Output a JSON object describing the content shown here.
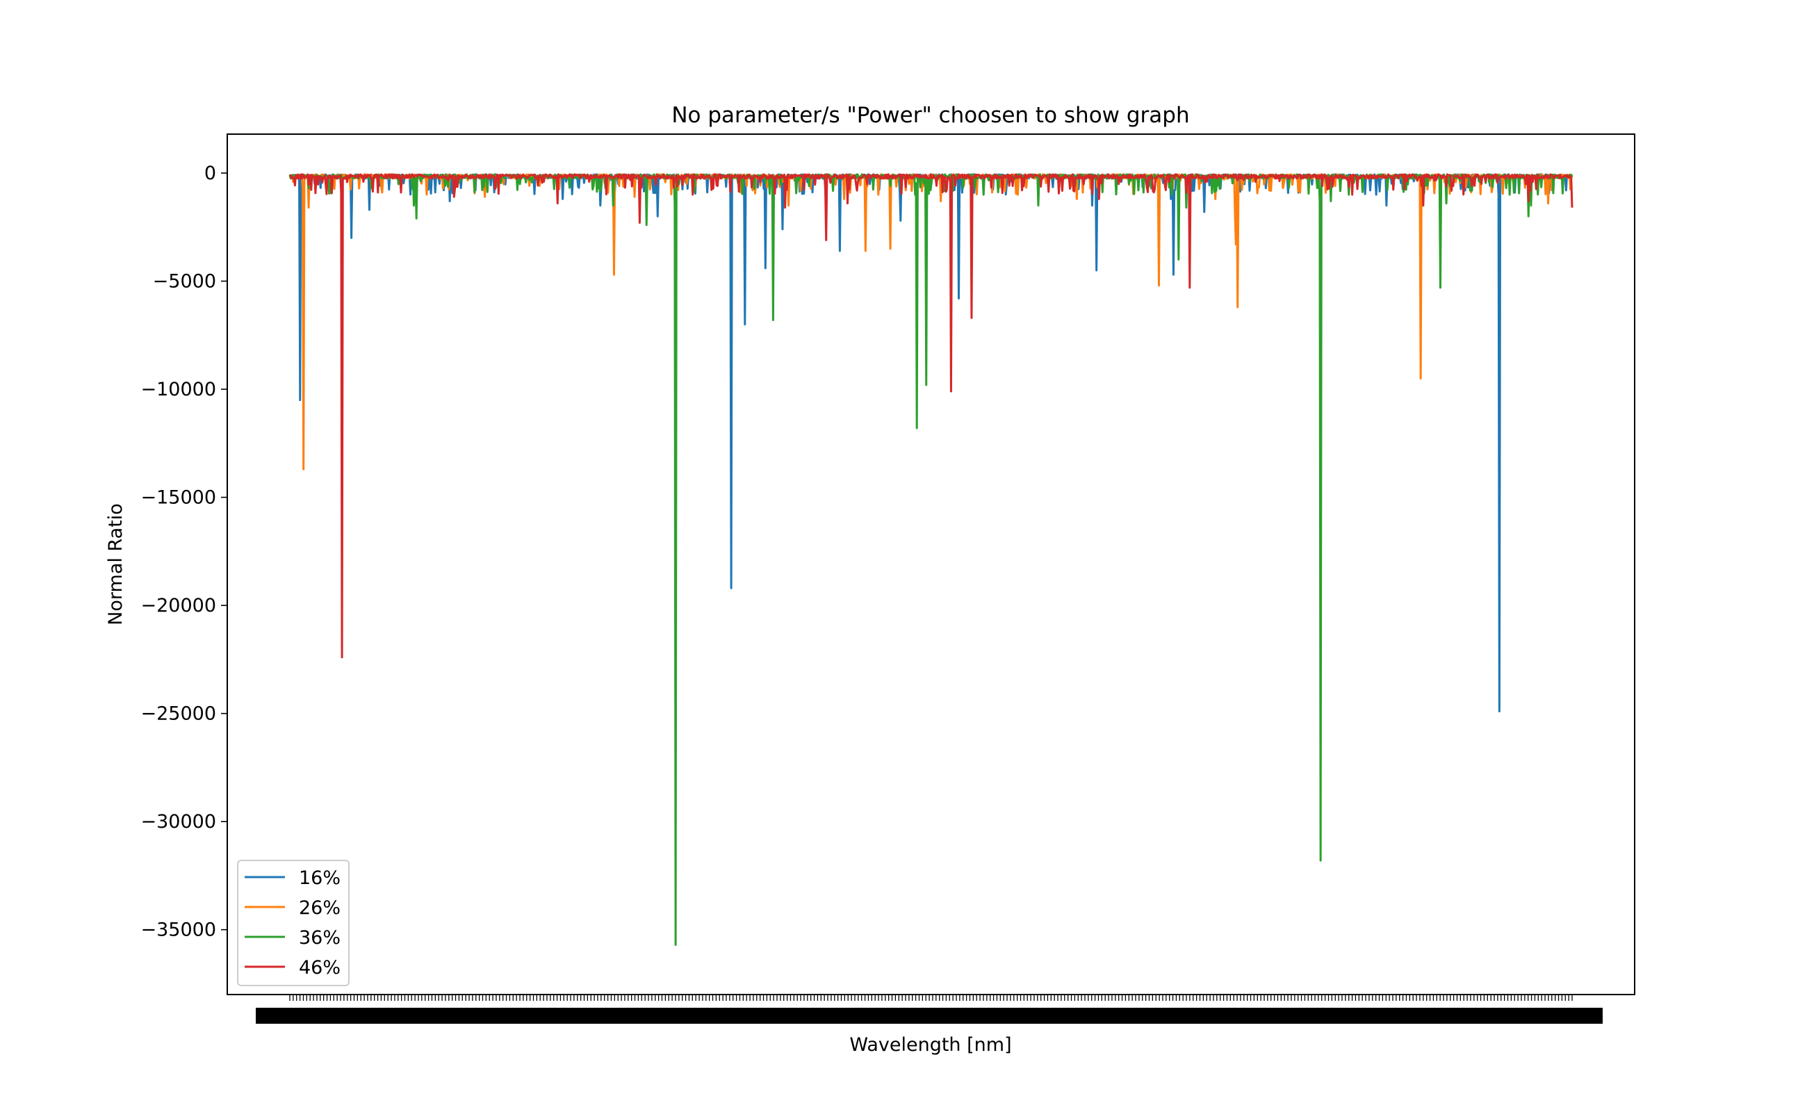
{
  "chart_data": {
    "type": "line",
    "title": "No parameter/s \"Power\" choosen to show graph",
    "xlabel": "Wavelength [nm]",
    "ylabel": "Normal Ratio",
    "ylim": [
      -38000,
      1800
    ],
    "yticks": [
      0,
      -5000,
      -10000,
      -15000,
      -20000,
      -25000,
      -30000,
      -35000
    ],
    "ytick_labels": [
      "0",
      "−5000",
      "−10000",
      "−15000",
      "−20000",
      "−25000",
      "−30000",
      "−35000"
    ],
    "x_tick_count": 380,
    "x_tick_labels_note": "dense overlapping wavelength tick labels (unreadable)",
    "grid": false,
    "legend_position": "lower left",
    "series": [
      {
        "name": "16%",
        "color": "#1f77b4",
        "spikes": [
          [
            0.008,
            -10500
          ],
          [
            0.048,
            -3000
          ],
          [
            0.062,
            -1700
          ],
          [
            0.125,
            -1300
          ],
          [
            0.145,
            -800
          ],
          [
            0.213,
            -1200
          ],
          [
            0.242,
            -1500
          ],
          [
            0.287,
            -2000
          ],
          [
            0.344,
            -19200
          ],
          [
            0.355,
            -7000
          ],
          [
            0.371,
            -4400
          ],
          [
            0.384,
            -2600
          ],
          [
            0.429,
            -3600
          ],
          [
            0.476,
            -2200
          ],
          [
            0.522,
            -5800
          ],
          [
            0.626,
            -1500
          ],
          [
            0.629,
            -4500
          ],
          [
            0.687,
            -1200
          ],
          [
            0.689,
            -4700
          ],
          [
            0.713,
            -1800
          ],
          [
            0.761,
            -700
          ],
          [
            0.847,
            -1000
          ],
          [
            0.855,
            -1500
          ],
          [
            0.943,
            -24900
          ],
          [
            0.955,
            -900
          ],
          [
            0.972,
            -600
          ],
          [
            0.995,
            -800
          ]
        ]
      },
      {
        "name": "26%",
        "color": "#ff7f0e",
        "spikes": [
          [
            0.011,
            -13700
          ],
          [
            0.015,
            -1600
          ],
          [
            0.072,
            -900
          ],
          [
            0.152,
            -1100
          ],
          [
            0.253,
            -4700
          ],
          [
            0.269,
            -1100
          ],
          [
            0.361,
            -800
          ],
          [
            0.389,
            -1500
          ],
          [
            0.432,
            -1200
          ],
          [
            0.449,
            -3600
          ],
          [
            0.468,
            -3500
          ],
          [
            0.508,
            -1300
          ],
          [
            0.548,
            -900
          ],
          [
            0.614,
            -1200
          ],
          [
            0.678,
            -5200
          ],
          [
            0.722,
            -1200
          ],
          [
            0.737,
            -2000
          ],
          [
            0.738,
            -3300
          ],
          [
            0.737,
            -2000
          ],
          [
            0.739,
            -6200
          ],
          [
            0.764,
            -800
          ],
          [
            0.788,
            -900
          ],
          [
            0.882,
            -9500
          ],
          [
            0.981,
            -1400
          ]
        ]
      },
      {
        "name": "36%",
        "color": "#2ca02c",
        "spikes": [
          [
            0.097,
            -1500
          ],
          [
            0.099,
            -2100
          ],
          [
            0.163,
            -500
          ],
          [
            0.252,
            -1500
          ],
          [
            0.278,
            -2400
          ],
          [
            0.301,
            -35700
          ],
          [
            0.377,
            -6800
          ],
          [
            0.468,
            -600
          ],
          [
            0.489,
            -11800
          ],
          [
            0.496,
            -9800
          ],
          [
            0.541,
            -1000
          ],
          [
            0.584,
            -1500
          ],
          [
            0.693,
            -4000
          ],
          [
            0.699,
            -1600
          ],
          [
            0.804,
            -31800
          ],
          [
            0.812,
            -1300
          ],
          [
            0.826,
            -1000
          ],
          [
            0.897,
            -5300
          ],
          [
            0.902,
            -1400
          ],
          [
            0.951,
            -1000
          ],
          [
            0.966,
            -2000
          ],
          [
            0.968,
            -1500
          ]
        ]
      },
      {
        "name": "46%",
        "color": "#d62728",
        "spikes": [
          [
            0.041,
            -22400
          ],
          [
            0.087,
            -900
          ],
          [
            0.128,
            -1100
          ],
          [
            0.209,
            -1400
          ],
          [
            0.273,
            -2300
          ],
          [
            0.302,
            -600
          ],
          [
            0.386,
            -1600
          ],
          [
            0.418,
            -3100
          ],
          [
            0.435,
            -1400
          ],
          [
            0.516,
            -10100
          ],
          [
            0.532,
            -6700
          ],
          [
            0.564,
            -600
          ],
          [
            0.631,
            -1200
          ],
          [
            0.702,
            -5300
          ],
          [
            0.805,
            -600
          ],
          [
            0.884,
            -1500
          ],
          [
            0.907,
            -600
          ],
          [
            0.966,
            -1300
          ],
          [
            1.0,
            -1600
          ]
        ]
      }
    ]
  }
}
